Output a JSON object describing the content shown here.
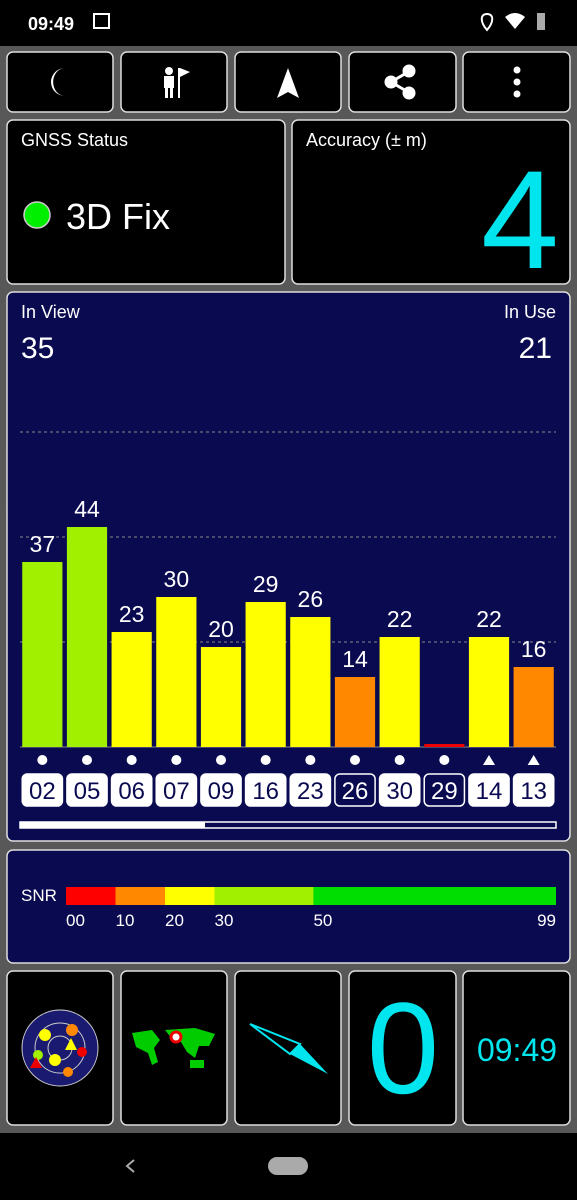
{
  "status_bar": {
    "time": "09:49"
  },
  "gnss_status": {
    "title": "GNSS Status",
    "fix": "3D Fix"
  },
  "accuracy": {
    "title": "Accuracy (± m)",
    "value": 4
  },
  "chart_data": {
    "type": "bar",
    "in_view_label": "In View",
    "in_view": 35,
    "in_use_label": "In Use",
    "in_use": 21,
    "categories": [
      "02",
      "05",
      "06",
      "07",
      "09",
      "16",
      "23",
      "26",
      "30",
      "29",
      "14",
      "13"
    ],
    "values": [
      37,
      44,
      23,
      30,
      20,
      29,
      26,
      14,
      22,
      0.6,
      22,
      16
    ],
    "value_labels": [
      "37",
      "44",
      "23",
      "30",
      "20",
      "29",
      "26",
      "14",
      "22",
      null,
      "22",
      "16"
    ],
    "colors": [
      "#a0f000",
      "#a0f000",
      "#ffff00",
      "#ffff00",
      "#ffff00",
      "#ffff00",
      "#ffff00",
      "#ff8800",
      "#ffff00",
      "#ee0000",
      "#ffff00",
      "#ff8800"
    ],
    "used": [
      true,
      true,
      true,
      true,
      true,
      true,
      true,
      false,
      true,
      false,
      true,
      true
    ],
    "markers": [
      "dot",
      "dot",
      "dot",
      "dot",
      "dot",
      "dot",
      "dot",
      "dot",
      "dot",
      "dot",
      "triangle",
      "triangle"
    ],
    "ylim": [
      0,
      64
    ],
    "yticks": [
      21,
      42,
      63
    ],
    "grid": true
  },
  "snr": {
    "label": "SNR",
    "xlim": [
      0,
      99
    ],
    "xticks": [
      {
        "value": 0,
        "label": "00"
      },
      10,
      20,
      30,
      50,
      99
    ],
    "segment_colors": [
      "#ff0000",
      "#ff8800",
      "#ffff00",
      "#a0f000",
      "#00dd00"
    ]
  },
  "tiles": {
    "speed": 0,
    "clock": "09:49"
  }
}
